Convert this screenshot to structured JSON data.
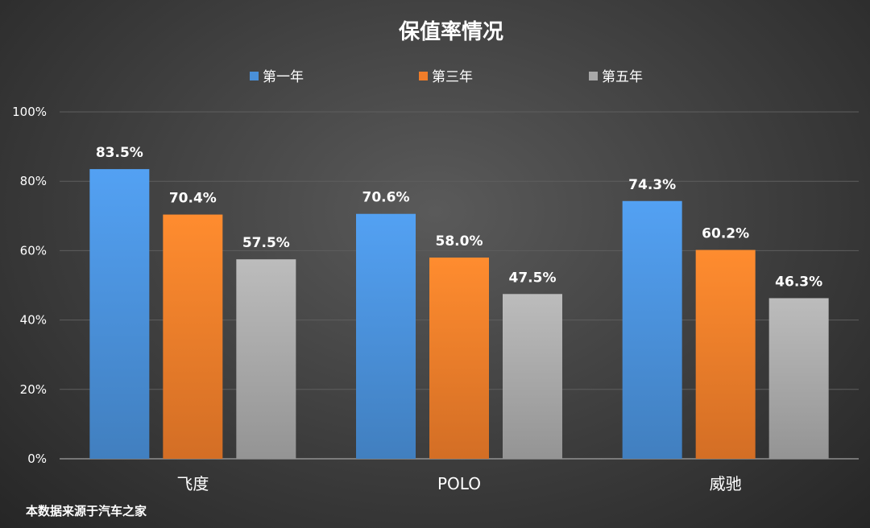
{
  "chart_data": {
    "type": "bar",
    "title": "保值率情况",
    "categories": [
      "飞度",
      "POLO",
      "威驰"
    ],
    "series": [
      {
        "name": "第一年",
        "values": [
          83.5,
          70.6,
          74.3
        ],
        "color": "#4a90d9"
      },
      {
        "name": "第三年",
        "values": [
          70.4,
          58.0,
          60.2
        ],
        "color": "#f07d2a"
      },
      {
        "name": "第五年",
        "values": [
          57.5,
          47.5,
          46.3
        ],
        "color": "#a8a8a8"
      }
    ],
    "data_labels": [
      [
        "83.5%",
        "70.6%",
        "74.3%"
      ],
      [
        "70.4%",
        "58.0%",
        "60.2%"
      ],
      [
        "57.5%",
        "47.5%",
        "46.3%"
      ]
    ],
    "yticks": [
      "0%",
      "20%",
      "40%",
      "60%",
      "80%",
      "100%"
    ],
    "ylim": [
      0,
      100
    ],
    "grid": true,
    "legend_position": "top"
  },
  "footer": {
    "source": "本数据来源于汽车之家"
  }
}
